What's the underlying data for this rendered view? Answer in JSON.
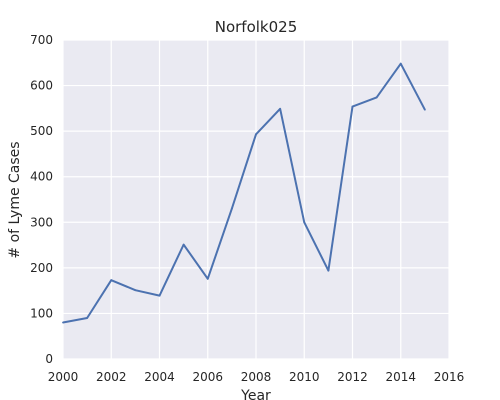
{
  "chart_data": {
    "type": "line",
    "title": "Norfolk025",
    "xlabel": "Year",
    "ylabel": "# of Lyme Cases",
    "xlim": [
      2000,
      2016
    ],
    "ylim": [
      0,
      700
    ],
    "xticks": [
      "2000",
      "2002",
      "2004",
      "2006",
      "2008",
      "2010",
      "2012",
      "2014",
      "2016"
    ],
    "yticks": [
      "0",
      "100",
      "200",
      "300",
      "400",
      "500",
      "600",
      "700"
    ],
    "grid": true,
    "series": [
      {
        "color": "#4c72b0",
        "x": [
          2000,
          2001,
          2002,
          2003,
          2004,
          2005,
          2006,
          2007,
          2008,
          2009,
          2010,
          2011,
          2012,
          2013,
          2014,
          2015
        ],
        "y": [
          80,
          90,
          173,
          151,
          139,
          251,
          176,
          330,
          493,
          549,
          300,
          194,
          554,
          574,
          648,
          547
        ]
      }
    ]
  }
}
